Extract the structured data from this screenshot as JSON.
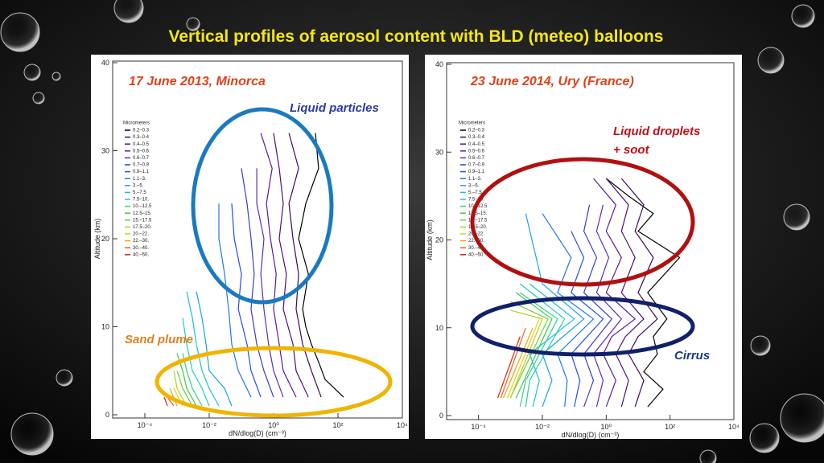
{
  "title": "Vertical profiles of aerosol content with BLD (meteo) balloons",
  "chart_data": [
    {
      "type": "line",
      "title": "17 June 2013, Minorca",
      "annotations": [
        "Liquid particles",
        "Sand plume"
      ],
      "xlabel": "dN/dlog(D)  (cm⁻³)",
      "ylabel": "Altitude (km)",
      "log_x": true,
      "xlim": [
        1e-05,
        10000
      ],
      "ylim": [
        0,
        40
      ],
      "xticks": [
        {
          "value": 0.0001,
          "label": "10⁻⁴"
        },
        {
          "value": 0.01,
          "label": "10⁻²"
        },
        {
          "value": 1,
          "label": "10⁰"
        },
        {
          "value": 100,
          "label": "10²"
        },
        {
          "value": 10000,
          "label": "10⁴"
        }
      ],
      "yticks": [
        0,
        10,
        20,
        30,
        40
      ],
      "legend_title": "Micrometers",
      "series": [
        {
          "name": "0.2–0.3",
          "color": "#000000",
          "x": [
            150,
            40,
            25,
            15,
            10,
            8,
            12,
            6,
            10,
            25,
            20
          ],
          "values": [
            2,
            4,
            6,
            8,
            10,
            12,
            16,
            20,
            24,
            28,
            32
          ]
        },
        {
          "name": "0.3–0.4",
          "color": "#3b0a55",
          "x": [
            30,
            15,
            8,
            5,
            6,
            4,
            3,
            6,
            3
          ],
          "values": [
            2,
            5,
            8,
            12,
            16,
            20,
            24,
            28,
            32
          ]
        },
        {
          "name": "0.4–0.5",
          "color": "#4b0f7a",
          "x": [
            12,
            5,
            4,
            2,
            2.5,
            1.5,
            2,
            1.5,
            1
          ],
          "values": [
            2,
            5,
            8,
            12,
            16,
            20,
            24,
            28,
            32
          ]
        },
        {
          "name": "0.5–0.6",
          "color": "#5a1a9a",
          "x": [
            5,
            2,
            1.5,
            1,
            1.2,
            0.8,
            0.6,
            0.9,
            0.4
          ],
          "values": [
            2,
            5,
            8,
            12,
            16,
            20,
            24,
            28,
            32
          ]
        },
        {
          "name": "0.6–0.7",
          "color": "#5a2cc0",
          "x": [
            2,
            1,
            0.7,
            0.5,
            0.4,
            0.5,
            0.3,
            0.3
          ],
          "values": [
            2,
            5,
            8,
            12,
            16,
            20,
            24,
            28
          ]
        },
        {
          "name": "0.7–0.9",
          "color": "#3a3ad0",
          "x": [
            1,
            0.5,
            0.3,
            0.2,
            0.25,
            0.2,
            0.15,
            0.1
          ],
          "values": [
            2,
            5,
            8,
            12,
            16,
            20,
            24,
            28
          ]
        },
        {
          "name": "0.9–1.1",
          "color": "#2050e0",
          "x": [
            0.4,
            0.2,
            0.15,
            0.08,
            0.1,
            0.06,
            0.05
          ],
          "values": [
            2,
            5,
            8,
            12,
            16,
            20,
            24
          ]
        },
        {
          "name": "1.1–3.",
          "color": "#1e78e6",
          "x": [
            0.2,
            0.08,
            0.05,
            0.04,
            0.03,
            0.02,
            0.02
          ],
          "values": [
            2,
            5,
            8,
            12,
            16,
            20,
            24
          ]
        },
        {
          "name": "3.–5.",
          "color": "#1aa0e6",
          "x": [
            0.05,
            0.03,
            0.01,
            0.008,
            0.006,
            0.004
          ],
          "values": [
            1,
            3,
            5,
            8,
            11,
            14
          ]
        },
        {
          "name": "5.–7.5",
          "color": "#18c0d8",
          "x": [
            0.02,
            0.01,
            0.006,
            0.004,
            0.003,
            0.002
          ],
          "values": [
            1,
            3,
            5,
            8,
            11,
            14
          ]
        },
        {
          "name": "7.5–10.",
          "color": "#20d0b0",
          "x": [
            0.01,
            0.006,
            0.003,
            0.002,
            0.0015
          ],
          "values": [
            1,
            3,
            5,
            8,
            11
          ]
        },
        {
          "name": "10.–12.5",
          "color": "#30d080",
          "x": [
            0.006,
            0.003,
            0.002,
            0.0015
          ],
          "values": [
            1,
            3,
            5,
            7
          ]
        },
        {
          "name": "12.5–15.",
          "color": "#40c850",
          "x": [
            0.004,
            0.002,
            0.0015,
            0.001
          ],
          "values": [
            1,
            3,
            5,
            7
          ]
        },
        {
          "name": "15.–17.5",
          "color": "#70d030",
          "x": [
            0.003,
            0.0015,
            0.001
          ],
          "values": [
            1,
            3,
            5
          ]
        },
        {
          "name": "17.5–20.",
          "color": "#b0d020",
          "x": [
            0.002,
            0.001,
            0.0008
          ],
          "values": [
            1,
            3,
            5
          ]
        },
        {
          "name": "20.–22.",
          "color": "#e0d010",
          "x": [
            0.0015,
            0.0008
          ],
          "values": [
            1,
            3
          ]
        },
        {
          "name": "22.–30.",
          "color": "#f0a010",
          "x": [
            0.001,
            0.0006
          ],
          "values": [
            1,
            3
          ]
        },
        {
          "name": "30.–40.",
          "color": "#f06010",
          "x": [
            0.0008,
            0.0005
          ],
          "values": [
            1,
            2
          ]
        },
        {
          "name": "40.–50.",
          "color": "#e02010",
          "x": [
            0.0005,
            0.0004
          ],
          "values": [
            1,
            2
          ]
        }
      ]
    },
    {
      "type": "line",
      "title": "23 June 2014, Ury (France)",
      "annotations": [
        "Liquid droplets",
        "+ soot",
        "Cirrus"
      ],
      "xlabel": "dN/dlog(D)  (cm⁻³)",
      "ylabel": "Altitude (km)",
      "log_x": true,
      "xlim": [
        1e-05,
        10000
      ],
      "ylim": [
        0,
        40
      ],
      "xticks": [
        {
          "value": 0.0001,
          "label": "10⁻⁴"
        },
        {
          "value": 0.01,
          "label": "10⁻²"
        },
        {
          "value": 1,
          "label": "10⁰"
        },
        {
          "value": 100,
          "label": "10²"
        },
        {
          "value": 10000,
          "label": "10⁴"
        }
      ],
      "yticks": [
        0,
        10,
        20,
        30,
        40
      ],
      "legend_title": "Micrometers",
      "series": [
        {
          "name": "0.2–0.3",
          "color": "#000000",
          "x": [
            20,
            60,
            15,
            40,
            30,
            80,
            20,
            200,
            10,
            30,
            5,
            1
          ],
          "values": [
            1,
            3,
            5,
            7,
            9,
            11,
            14,
            18,
            21,
            23,
            25,
            27
          ]
        },
        {
          "name": "0.3–0.4",
          "color": "#3b0a55",
          "x": [
            8,
            15,
            5,
            10,
            40,
            10,
            30,
            8,
            15,
            3
          ],
          "values": [
            1,
            4,
            7,
            9,
            11,
            14,
            18,
            21,
            24,
            27
          ]
        },
        {
          "name": "0.4–0.5",
          "color": "#4b0f7a",
          "x": [
            3,
            5,
            2,
            4,
            15,
            3,
            8,
            3,
            5,
            1
          ],
          "values": [
            1,
            4,
            7,
            9,
            11,
            14,
            18,
            21,
            24,
            27
          ]
        },
        {
          "name": "0.5–0.6",
          "color": "#5a1a9a",
          "x": [
            1,
            2,
            0.8,
            1.5,
            8,
            1,
            3,
            1,
            2,
            0.4
          ],
          "values": [
            1,
            4,
            7,
            9,
            11,
            14,
            18,
            21,
            24,
            27
          ]
        },
        {
          "name": "0.6–0.7",
          "color": "#5a2cc0",
          "x": [
            0.5,
            0.8,
            0.4,
            3,
            0.5,
            1.2,
            0.5,
            0.8
          ],
          "values": [
            1,
            4,
            7,
            11,
            14,
            18,
            21,
            24
          ]
        },
        {
          "name": "0.7–0.9",
          "color": "#3a3ad0",
          "x": [
            0.2,
            0.4,
            0.2,
            1.5,
            0.2,
            0.5,
            0.2,
            0.3
          ],
          "values": [
            1,
            4,
            7,
            11,
            14,
            18,
            21,
            24
          ]
        },
        {
          "name": "0.9–1.1",
          "color": "#2050e0",
          "x": [
            0.1,
            0.15,
            0.08,
            0.8,
            0.08,
            0.2,
            0.08
          ],
          "values": [
            1,
            4,
            7,
            11,
            14,
            18,
            21
          ]
        },
        {
          "name": "1.1–3.",
          "color": "#1e78e6",
          "x": [
            0.05,
            0.06,
            0.03,
            0.4,
            0.03,
            0.08,
            0.01
          ],
          "values": [
            1,
            4,
            7,
            11,
            14,
            18,
            23
          ]
        },
        {
          "name": "3.–5.",
          "color": "#1aa0e6",
          "x": [
            0.01,
            0.02,
            0.01,
            0.2,
            0.01,
            0.003
          ],
          "values": [
            1,
            4,
            7,
            11,
            15,
            23
          ]
        },
        {
          "name": "5.–7.5",
          "color": "#18c0d8",
          "x": [
            0.005,
            0.008,
            0.004,
            0.1,
            0.004
          ],
          "values": [
            1,
            4,
            7,
            11,
            15
          ]
        },
        {
          "name": "7.5–10.",
          "color": "#20d0b0",
          "x": [
            0.003,
            0.004,
            0.05,
            0.002
          ],
          "values": [
            1,
            4,
            11,
            15
          ]
        },
        {
          "name": "10.–12.5",
          "color": "#30d080",
          "x": [
            0.002,
            0.003,
            0.03,
            0.002
          ],
          "values": [
            1,
            4,
            11,
            14
          ]
        },
        {
          "name": "12.5–15.",
          "color": "#40c850",
          "x": [
            0.0015,
            0.02,
            0.0015
          ],
          "values": [
            2,
            11,
            14
          ]
        },
        {
          "name": "15.–17.5",
          "color": "#70d030",
          "x": [
            0.001,
            0.015,
            0.001
          ],
          "values": [
            2,
            11,
            13
          ]
        },
        {
          "name": "17.5–20.",
          "color": "#b0d020",
          "x": [
            0.001,
            0.01,
            0.001
          ],
          "values": [
            2,
            11,
            12
          ]
        },
        {
          "name": "20.–22.",
          "color": "#e0d010",
          "x": [
            0.0008,
            0.008
          ],
          "values": [
            2,
            11
          ]
        },
        {
          "name": "22.–30.",
          "color": "#f0a010",
          "x": [
            0.0006,
            0.005
          ],
          "values": [
            2,
            10
          ]
        },
        {
          "name": "30.–40.",
          "color": "#f06010",
          "x": [
            0.0005,
            0.003
          ],
          "values": [
            2,
            10
          ]
        },
        {
          "name": "40.–50.",
          "color": "#e02010",
          "x": [
            0.0004,
            0.002
          ],
          "values": [
            2,
            9
          ]
        }
      ]
    }
  ]
}
